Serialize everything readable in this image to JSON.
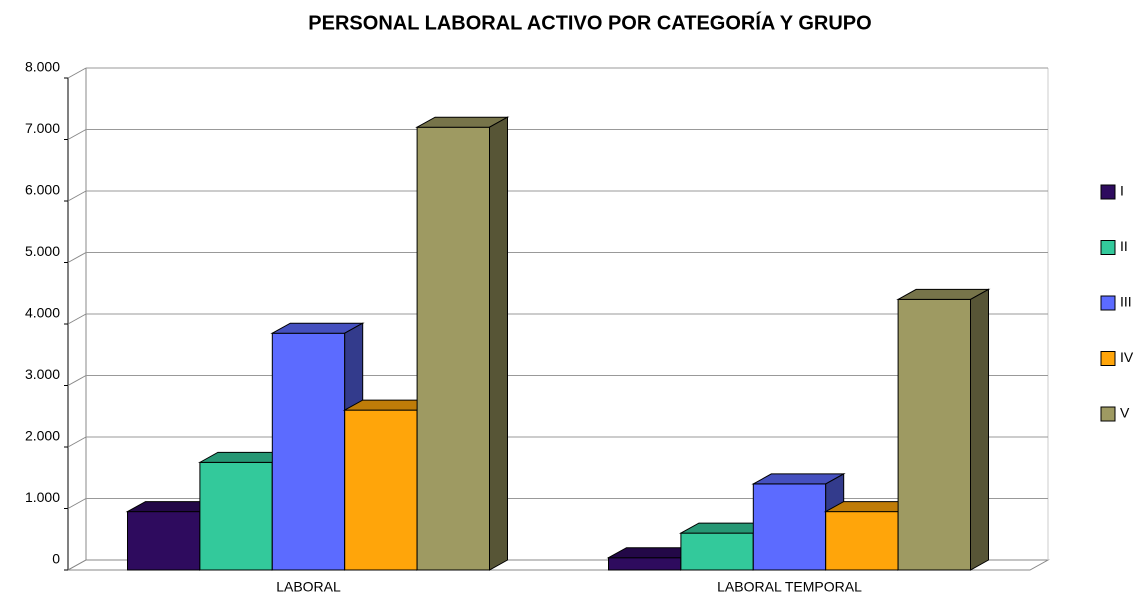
{
  "chart_data": {
    "type": "bar3d",
    "title": "PERSONAL LABORAL ACTIVO POR CATEGORÍA Y GRUPO",
    "categories": [
      "LABORAL",
      "LABORAL TEMPORAL"
    ],
    "series": [
      {
        "name": "I",
        "color": "#2e0b5e",
        "values": [
          950,
          200
        ]
      },
      {
        "name": "II",
        "color": "#33c99b",
        "values": [
          1750,
          600
        ]
      },
      {
        "name": "III",
        "color": "#5c6bff",
        "values": [
          3850,
          1400
        ]
      },
      {
        "name": "IV",
        "color": "#ffa50a",
        "values": [
          2600,
          950
        ]
      },
      {
        "name": "V",
        "color": "#9e9a62",
        "values": [
          7200,
          4400
        ]
      }
    ],
    "ylim": [
      0,
      8000
    ],
    "yticks": [
      0,
      {
        "value": 1000,
        "label": "1.000"
      },
      {
        "value": 2000,
        "label": "2.000"
      },
      {
        "value": 3000,
        "label": "3.000"
      },
      {
        "value": 4000,
        "label": "4.000"
      },
      {
        "value": 5000,
        "label": "5.000"
      },
      {
        "value": 6000,
        "label": "6.000"
      },
      {
        "value": 7000,
        "label": "7.000"
      },
      {
        "value": 8000,
        "label": "8.000"
      }
    ],
    "grid": true,
    "legend": "right"
  }
}
